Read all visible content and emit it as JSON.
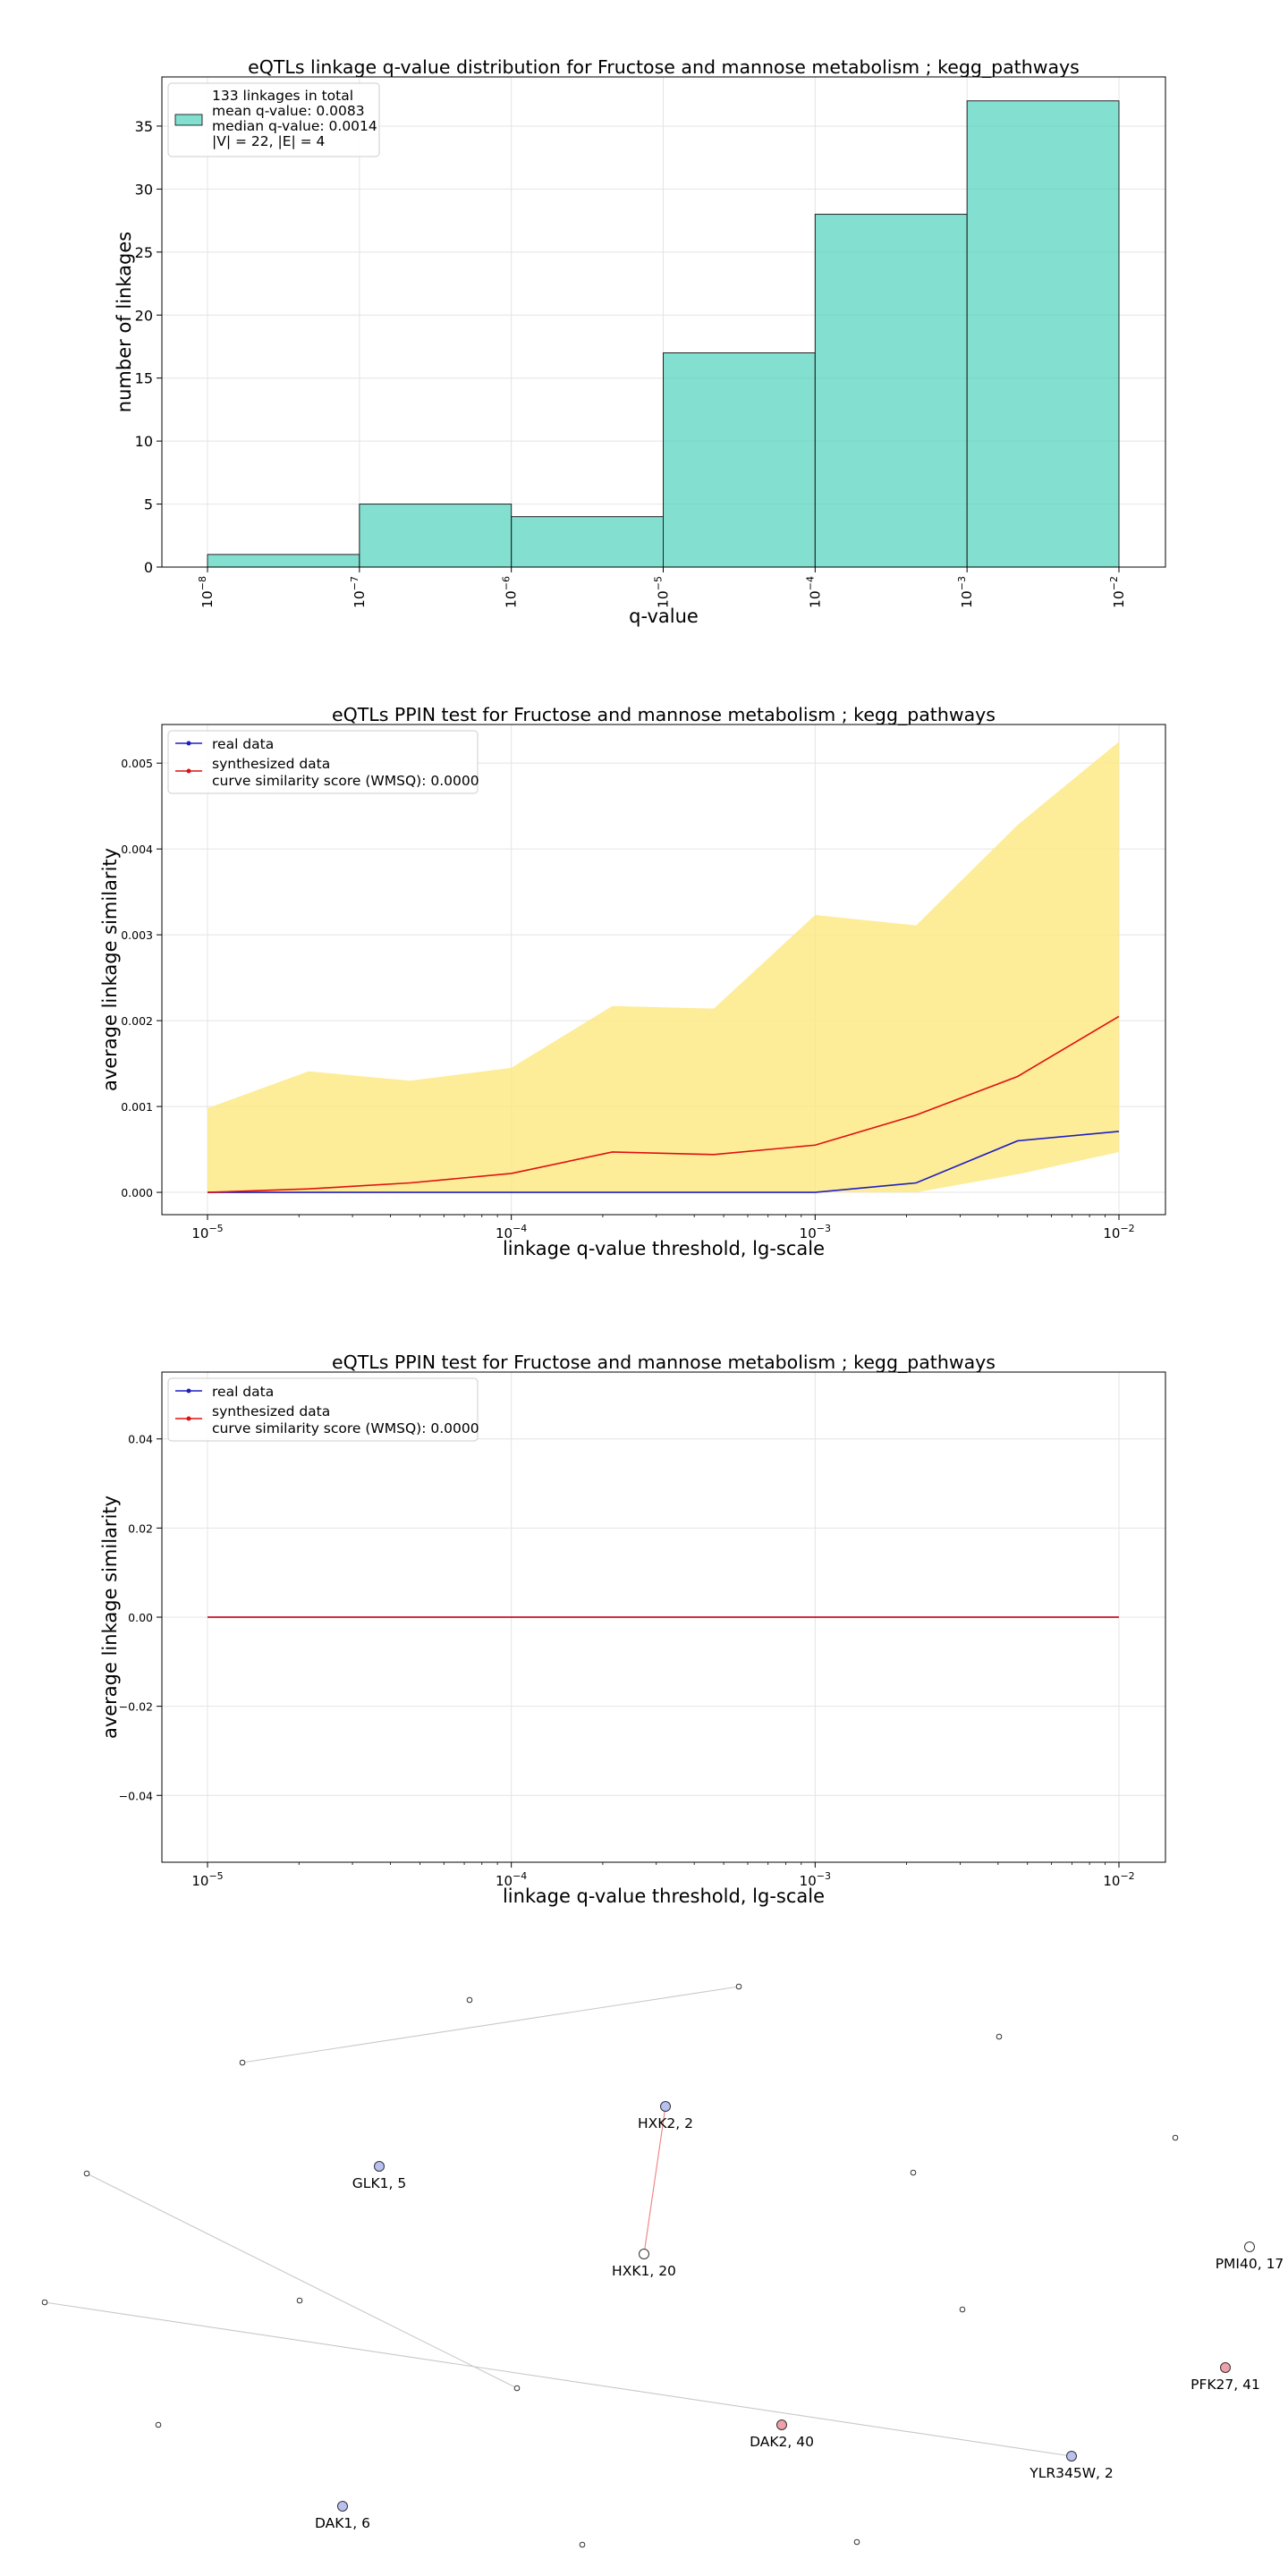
{
  "chart_data": [
    {
      "type": "bar",
      "title": "eQTLs linkage q-value distribution for Fructose and mannose metabolism ; kegg_pathways",
      "xlabel": "q-value",
      "ylabel": "number of linkages",
      "x_scale": "log",
      "xlim": [
        1e-08,
        0.01
      ],
      "ylim": [
        0,
        38.9
      ],
      "grid": true,
      "x_ticks": [
        1e-08,
        1e-07,
        1e-06,
        1e-05,
        0.0001,
        0.001,
        0.01
      ],
      "x_tick_exponents": [
        "−8",
        "−7",
        "−6",
        "−5",
        "−4",
        "−3",
        "−2"
      ],
      "y_ticks": [
        0,
        5,
        10,
        15,
        20,
        25,
        30,
        35
      ],
      "bins": [
        {
          "start": 1e-08,
          "end": 1e-07,
          "count": 1
        },
        {
          "start": 1e-07,
          "end": 1e-06,
          "count": 5
        },
        {
          "start": 1e-06,
          "end": 1e-05,
          "count": 4
        },
        {
          "start": 1e-05,
          "end": 0.0001,
          "count": 17
        },
        {
          "start": 0.0001,
          "end": 0.001,
          "count": 28
        },
        {
          "start": 0.001,
          "end": 0.01,
          "count": 37
        }
      ],
      "bar_color": "#40d0b8",
      "legend_placement": "upper-left",
      "legend_lines": [
        "133 linkages in total",
        "mean q-value: 0.0083",
        "median q-value: 0.0014",
        "|V| = 22, |E| = 4"
      ]
    },
    {
      "type": "line",
      "title": "eQTLs PPIN test for Fructose and mannose metabolism ; kegg_pathways",
      "xlabel": "linkage q-value threshold, lg-scale",
      "ylabel": "average linkage similarity",
      "x_scale": "log",
      "xlim": [
        1e-05,
        0.01
      ],
      "ylim": [
        -0.00026,
        0.00545
      ],
      "grid": true,
      "x_ticks": [
        1e-05,
        0.0001,
        0.001,
        0.01
      ],
      "x_tick_exponents": [
        "−5",
        "−4",
        "−3",
        "−2"
      ],
      "y_ticks": [
        0,
        0.001,
        0.002,
        0.003,
        0.004,
        0.005
      ],
      "y_tick_labels": [
        "0.000",
        "0.001",
        "0.002",
        "0.003",
        "0.004",
        "0.005"
      ],
      "x": [
        1e-05,
        2.15e-05,
        4.64e-05,
        0.0001,
        0.000215,
        0.000464,
        0.001,
        0.00215,
        0.00464,
        0.01
      ],
      "series": [
        {
          "name": "real data",
          "color": "#1f1fbf",
          "values": [
            0,
            0,
            0,
            0,
            0,
            0,
            0,
            0.00011,
            0.0006,
            0.00071
          ]
        },
        {
          "name": "synthesized data",
          "color": "#e01010",
          "values": [
            0,
            4e-05,
            0.00011,
            0.00022,
            0.00047,
            0.00044,
            0.00055,
            0.0009,
            0.00135,
            0.00205
          ]
        }
      ],
      "band": {
        "color": "#fde77e",
        "upper": [
          0.00098,
          0.00141,
          0.0013,
          0.00145,
          0.00217,
          0.00214,
          0.00323,
          0.00311,
          0.00428,
          0.00525
        ],
        "lower": [
          0,
          0,
          0,
          0,
          0,
          0,
          0,
          0,
          0.00021,
          0.00047
        ]
      },
      "legend_placement": "upper-left",
      "legend_note": "curve similarity score (WMSQ): 0.0000"
    },
    {
      "type": "line",
      "title": "eQTLs PPIN test for Fructose and mannose metabolism ; kegg_pathways",
      "xlabel": "linkage q-value threshold, lg-scale",
      "ylabel": "average linkage similarity",
      "x_scale": "log",
      "xlim": [
        1e-05,
        0.01
      ],
      "ylim": [
        -0.055,
        0.055
      ],
      "grid": true,
      "x_ticks": [
        1e-05,
        0.0001,
        0.001,
        0.01
      ],
      "x_tick_exponents": [
        "−5",
        "−4",
        "−3",
        "−2"
      ],
      "y_ticks": [
        -0.04,
        -0.02,
        0,
        0.02,
        0.04
      ],
      "y_tick_labels": [
        "−0.04",
        "−0.02",
        "0.00",
        "0.02",
        "0.04"
      ],
      "x": [
        1e-05,
        2.15e-05,
        4.64e-05,
        0.0001,
        0.000215,
        0.000464,
        0.001,
        0.00215,
        0.00464,
        0.01
      ],
      "series": [
        {
          "name": "real data",
          "color": "#1f1fbf",
          "values": [
            0,
            0,
            0,
            0,
            0,
            0,
            0,
            0,
            0,
            0
          ]
        },
        {
          "name": "synthesized data",
          "color": "#e01010",
          "values": [
            0,
            0,
            0,
            0,
            0,
            0,
            0,
            0,
            0,
            0
          ]
        }
      ],
      "legend_placement": "upper-left",
      "legend_note": "curve similarity score (WMSQ): 0.0000"
    },
    {
      "type": "network",
      "nodes": [
        {
          "id": "n1",
          "label": "",
          "fill": "#ffffff"
        },
        {
          "id": "n2",
          "label": "",
          "fill": "#ffffff"
        },
        {
          "id": "n3",
          "label": "",
          "fill": "#ffffff"
        },
        {
          "id": "n4",
          "label": "",
          "fill": "#ffffff"
        },
        {
          "id": "HXK2",
          "label": "HXK2, 2",
          "fill": "#b8c0f0",
          "big": true
        },
        {
          "id": "GLK1",
          "label": "GLK1, 5",
          "fill": "#b8c0f0",
          "big": true
        },
        {
          "id": "n5",
          "label": "",
          "fill": "#ffffff"
        },
        {
          "id": "n6",
          "label": "",
          "fill": "#ffffff"
        },
        {
          "id": "n7",
          "label": "",
          "fill": "#ffffff"
        },
        {
          "id": "HXK1",
          "label": "HXK1, 20",
          "fill": "#ffffff",
          "big": true
        },
        {
          "id": "PMI40",
          "label": "PMI40, 17",
          "fill": "#ffffff",
          "big": true
        },
        {
          "id": "n8",
          "label": "",
          "fill": "#ffffff"
        },
        {
          "id": "n9",
          "label": "",
          "fill": "#ffffff"
        },
        {
          "id": "n10",
          "label": "",
          "fill": "#ffffff"
        },
        {
          "id": "PFK27",
          "label": "PFK27, 41",
          "fill": "#f0a0a8",
          "big": true
        },
        {
          "id": "n11",
          "label": "",
          "fill": "#ffffff"
        },
        {
          "id": "DAK2",
          "label": "DAK2, 40",
          "fill": "#f0a0a8",
          "big": true
        },
        {
          "id": "n12",
          "label": "",
          "fill": "#ffffff"
        },
        {
          "id": "YLR345W",
          "label": "YLR345W, 2",
          "fill": "#b8c0f0",
          "big": true
        },
        {
          "id": "DAK1",
          "label": "DAK1, 6",
          "fill": "#b8c0f0",
          "big": true
        },
        {
          "id": "n13",
          "label": "",
          "fill": "#ffffff"
        },
        {
          "id": "n14",
          "label": "",
          "fill": "#ffffff"
        }
      ],
      "edges": [
        {
          "source": "n2",
          "target": "n3",
          "color": "#c8c8c8"
        },
        {
          "source": "HXK2",
          "target": "HXK1",
          "color": "#f08080"
        },
        {
          "source": "n5",
          "target": "n11",
          "color": "#c8c8c8"
        },
        {
          "source": "n8",
          "target": "YLR345W",
          "color": "#c8c8c8"
        }
      ]
    }
  ]
}
